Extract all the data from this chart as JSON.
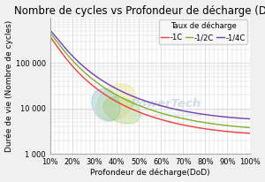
{
  "title": "Nombre de cycles vs Profondeur de décharge (DoD)",
  "xlabel": "Profondeur de décharge(DoD)",
  "ylabel": "Durée de vie (Nombre de cycles)",
  "legend_title": "Taux de décharge",
  "series": [
    {
      "label": "-1C",
      "color": "#e84040"
    },
    {
      "label": "-1/2C",
      "color": "#80b030"
    },
    {
      "label": "-1/4C",
      "color": "#7040b0"
    }
  ],
  "dod_pct": [
    10,
    20,
    30,
    40,
    50,
    60,
    70,
    80,
    90,
    100
  ],
  "cycles_1C": [
    380000,
    85000,
    30000,
    14000,
    8500,
    5800,
    4300,
    3500,
    3100,
    2900
  ],
  "cycles_half": [
    460000,
    110000,
    42000,
    20000,
    12000,
    7800,
    5800,
    4800,
    4200,
    3900
  ],
  "cycles_qtr": [
    530000,
    135000,
    56000,
    28000,
    17000,
    11000,
    8500,
    7200,
    6500,
    6100
  ],
  "ylim_min": 1000,
  "ylim_max": 1000000,
  "bg_color": "#f0f0f0",
  "plot_bg": "#ffffff",
  "grid_color": "#d0d0d0",
  "title_fontsize": 8.5,
  "label_fontsize": 6.5,
  "tick_fontsize": 6,
  "legend_fontsize": 6
}
